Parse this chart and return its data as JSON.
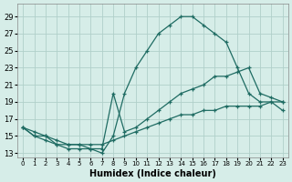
{
  "title": "",
  "xlabel": "Humidex (Indice chaleur)",
  "ylabel": "",
  "background_color": "#d6ede8",
  "grid_color": "#b0d0ca",
  "line_color": "#1e6b62",
  "xlim": [
    -0.5,
    23.5
  ],
  "ylim": [
    12.5,
    30.5
  ],
  "xticks": [
    0,
    1,
    2,
    3,
    4,
    5,
    6,
    7,
    8,
    9,
    10,
    11,
    12,
    13,
    14,
    15,
    16,
    17,
    18,
    19,
    20,
    21,
    22,
    23
  ],
  "yticks": [
    13,
    15,
    17,
    19,
    21,
    23,
    25,
    27,
    29
  ],
  "series": [
    {
      "x": [
        0,
        1,
        2,
        3,
        4,
        5,
        6,
        7,
        8,
        9,
        10,
        11,
        12,
        13,
        14,
        15,
        16,
        17,
        18,
        19,
        20,
        21,
        22,
        23
      ],
      "y": [
        16,
        15,
        15,
        14,
        14,
        14,
        13.5,
        13,
        15,
        20,
        23,
        25,
        27,
        28,
        29,
        29,
        28,
        27,
        26,
        23,
        20,
        19,
        19,
        18
      ]
    },
    {
      "x": [
        0,
        1,
        2,
        3,
        4,
        5,
        6,
        7,
        8,
        9,
        10,
        11,
        12,
        13,
        14,
        15,
        16,
        17,
        18,
        19,
        20,
        21,
        22,
        23
      ],
      "y": [
        16,
        15.5,
        15,
        14.5,
        14,
        14,
        14,
        14,
        14.5,
        15,
        15.5,
        16,
        16.5,
        17,
        17.5,
        17.5,
        18,
        18,
        18.5,
        18.5,
        18.5,
        18.5,
        19,
        19
      ]
    },
    {
      "x": [
        0,
        1,
        2,
        3,
        4,
        5,
        6,
        7,
        8,
        9,
        10,
        11,
        12,
        13,
        14,
        15,
        16,
        17,
        18,
        19,
        20,
        21,
        22,
        23
      ],
      "y": [
        16,
        15,
        14.5,
        14,
        13.5,
        13.5,
        13.5,
        13.5,
        20,
        15.5,
        16,
        17,
        18,
        19,
        20,
        20.5,
        21,
        22,
        22,
        22.5,
        23,
        20,
        19.5,
        19
      ]
    }
  ]
}
